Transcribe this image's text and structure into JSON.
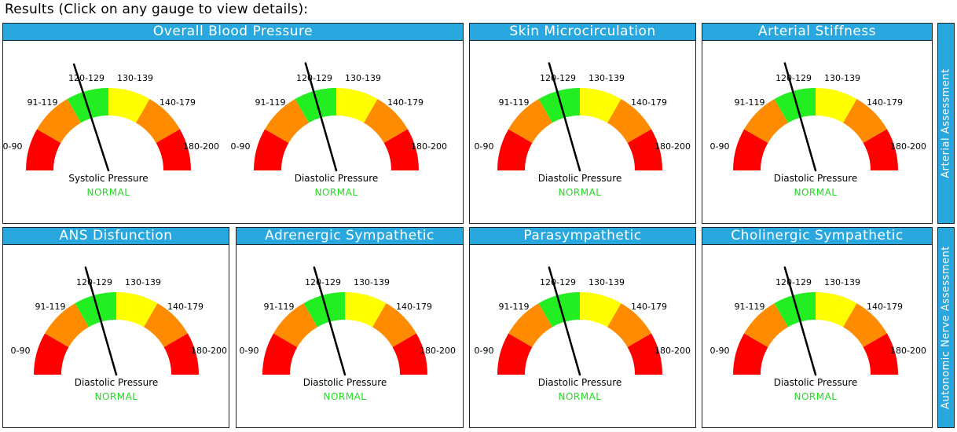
{
  "heading": "Results (Click on any gauge to view details):",
  "gauge_ranges": [
    "0-90",
    "91-119",
    "120-129",
    "130-139",
    "140-179",
    "180-200"
  ],
  "segment_colors": [
    "#ff0000",
    "#ff8c00",
    "#22ee22",
    "#ffff00",
    "#ff8c00",
    "#ff0000"
  ],
  "status_color": "#22dd22",
  "panels": [
    {
      "title": "Overall Blood Pressure",
      "gauges": [
        {
          "label": "Systolic Pressure",
          "status": "NORMAL",
          "needle_angle_deg": 108
        },
        {
          "label": "Diastolic Pressure",
          "status": "NORMAL",
          "needle_angle_deg": 106
        }
      ]
    },
    {
      "title": "Skin Microcirculation",
      "gauges": [
        {
          "label": "Diastolic Pressure",
          "status": "NORMAL",
          "needle_angle_deg": 106
        }
      ]
    },
    {
      "title": "Arterial Stiffness",
      "gauges": [
        {
          "label": "Diastolic Pressure",
          "status": "NORMAL",
          "needle_angle_deg": 106
        }
      ]
    },
    {
      "title": "ANS Disfunction",
      "gauges": [
        {
          "label": "Diastolic Pressure",
          "status": "NORMAL",
          "needle_angle_deg": 106
        }
      ]
    },
    {
      "title": "Adrenergic Sympathetic",
      "gauges": [
        {
          "label": "Diastolic Pressure",
          "status": "NORMAL",
          "needle_angle_deg": 106
        }
      ]
    },
    {
      "title": "Parasympathetic",
      "gauges": [
        {
          "label": "Diastolic Pressure",
          "status": "NORMAL",
          "needle_angle_deg": 106
        }
      ]
    },
    {
      "title": "Cholinergic Sympathetic",
      "gauges": [
        {
          "label": "Diastolic Pressure",
          "status": "NORMAL",
          "needle_angle_deg": 106
        }
      ]
    }
  ],
  "side_tabs": [
    "Arterial Assessment",
    "Autonomic Nerve Assessment"
  ]
}
